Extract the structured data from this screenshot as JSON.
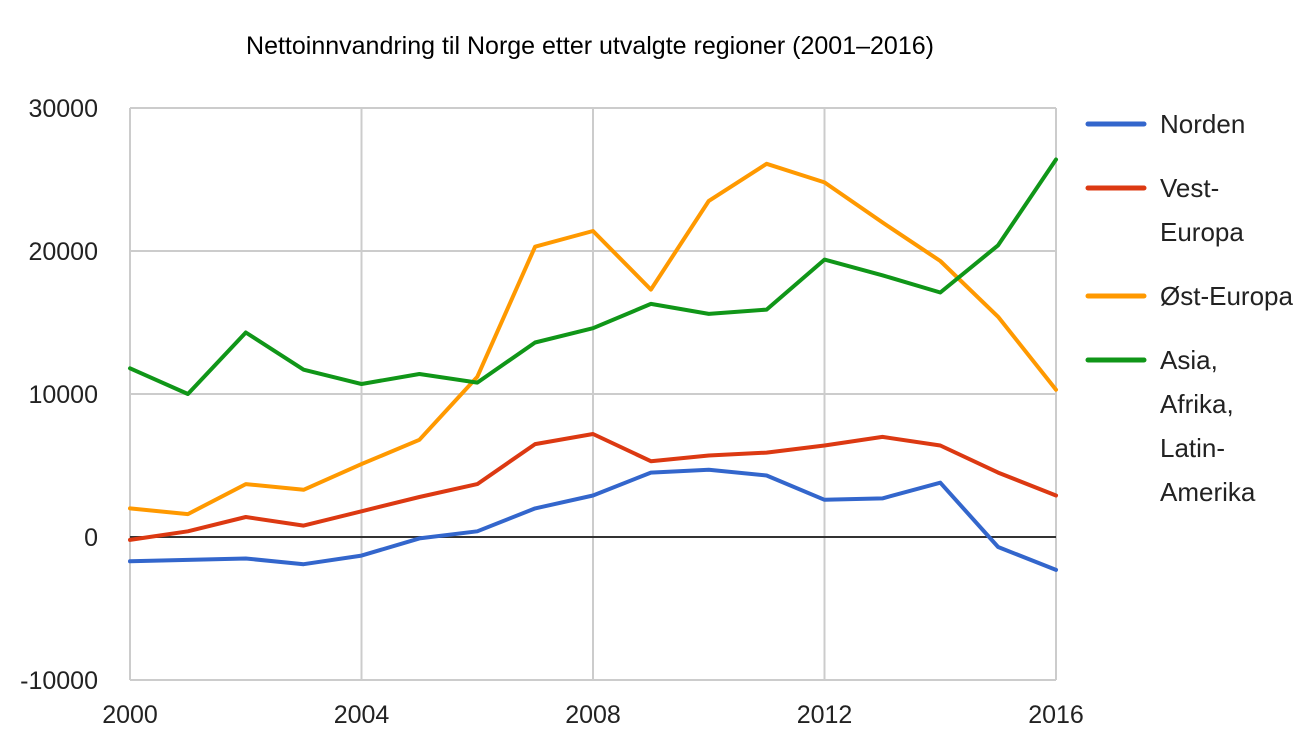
{
  "chart_data": {
    "type": "line",
    "title": "Nettoinnvandring til Norge etter utvalgte regioner (2001–2016)",
    "xlabel": "",
    "ylabel": "",
    "xlim": [
      2000,
      2016
    ],
    "ylim": [
      -10000,
      30000
    ],
    "x_ticks": [
      "2000",
      "2004",
      "2008",
      "2012",
      "2016"
    ],
    "y_ticks": [
      "30000",
      "20000",
      "10000",
      "0",
      "-10000"
    ],
    "grid": true,
    "legend_position": "right",
    "x": [
      2000,
      2001,
      2002,
      2003,
      2004,
      2005,
      2006,
      2007,
      2008,
      2009,
      2010,
      2011,
      2012,
      2013,
      2014,
      2015,
      2016
    ],
    "series": [
      {
        "name_lines": [
          "Norden"
        ],
        "color": "#3366cc",
        "values": [
          -1700,
          -1600,
          -1500,
          -1900,
          -1300,
          -100,
          400,
          2000,
          2900,
          4500,
          4700,
          4300,
          2600,
          2700,
          3800,
          -700,
          -2300
        ]
      },
      {
        "name_lines": [
          "Vest-",
          "Europa"
        ],
        "color": "#dc3912",
        "values": [
          -200,
          400,
          1400,
          800,
          1800,
          2800,
          3700,
          6500,
          7200,
          5300,
          5700,
          5900,
          6400,
          7000,
          6400,
          4500,
          2900
        ]
      },
      {
        "name_lines": [
          "Øst-Europa"
        ],
        "color": "#ff9900",
        "values": [
          2000,
          1600,
          3700,
          3300,
          5100,
          6800,
          11200,
          20300,
          21400,
          17300,
          23500,
          26100,
          24800,
          22000,
          19300,
          15400,
          10300
        ]
      },
      {
        "name_lines": [
          "Asia,",
          "Afrika,",
          "Latin-",
          "Amerika"
        ],
        "color": "#109618",
        "values": [
          11800,
          10000,
          14300,
          11700,
          10700,
          11400,
          10800,
          13600,
          14600,
          16300,
          15600,
          15900,
          19400,
          18300,
          17100,
          20400,
          26400
        ]
      }
    ]
  }
}
